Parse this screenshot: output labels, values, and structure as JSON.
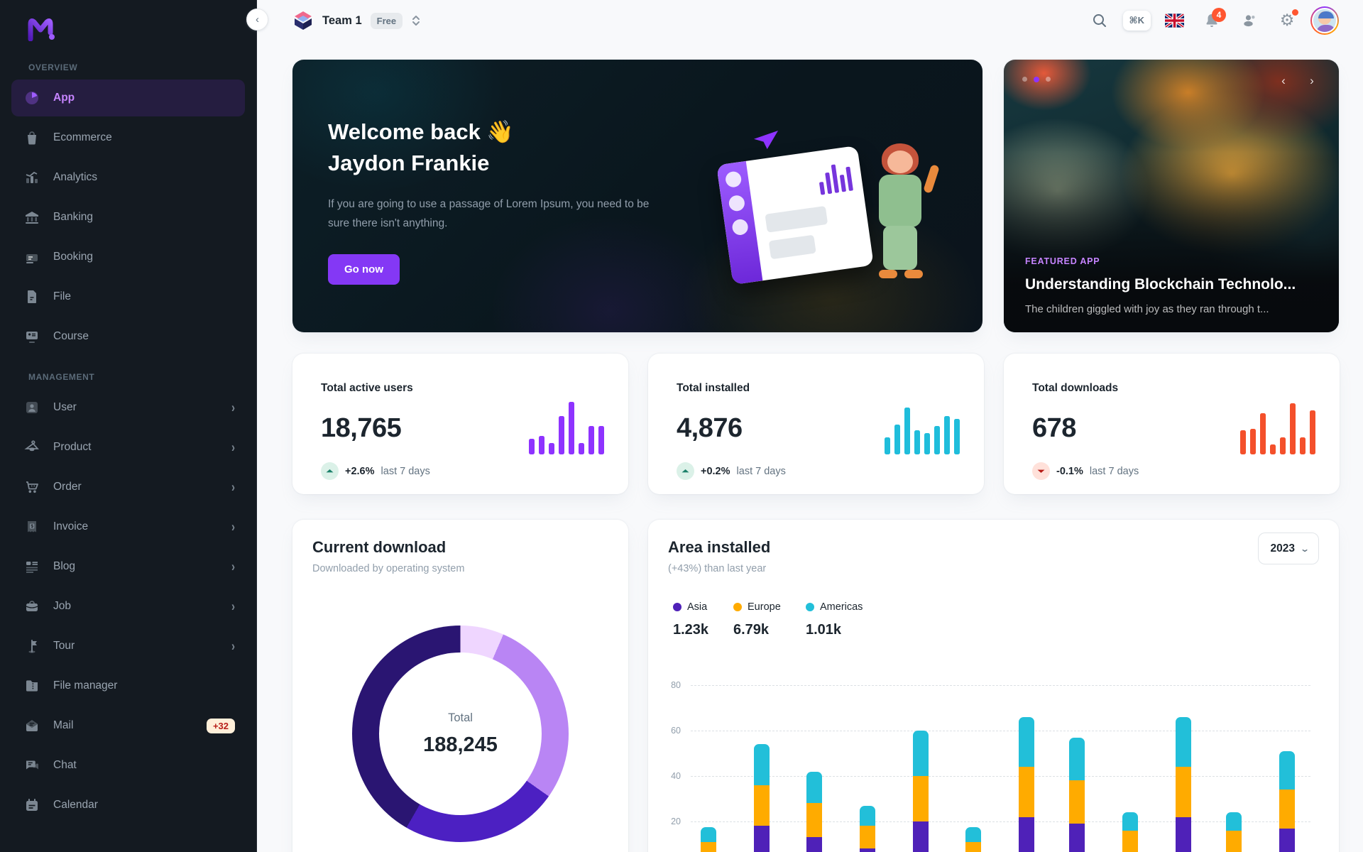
{
  "header": {
    "team_name": "Team 1",
    "plan_badge": "Free",
    "shortcut": "⌘K",
    "notification_count": "4",
    "collapse_glyph": "‹"
  },
  "sidebar": {
    "sections": [
      {
        "label": "OVERVIEW",
        "items": [
          {
            "label": "App",
            "icon": "app",
            "active": true
          },
          {
            "label": "Ecommerce",
            "icon": "ecommerce"
          },
          {
            "label": "Analytics",
            "icon": "analytics"
          },
          {
            "label": "Banking",
            "icon": "banking"
          },
          {
            "label": "Booking",
            "icon": "booking"
          },
          {
            "label": "File",
            "icon": "file"
          },
          {
            "label": "Course",
            "icon": "course"
          }
        ]
      },
      {
        "label": "MANAGEMENT",
        "items": [
          {
            "label": "User",
            "icon": "user",
            "chevron": true
          },
          {
            "label": "Product",
            "icon": "product",
            "chevron": true
          },
          {
            "label": "Order",
            "icon": "order",
            "chevron": true
          },
          {
            "label": "Invoice",
            "icon": "invoice",
            "chevron": true
          },
          {
            "label": "Blog",
            "icon": "blog",
            "chevron": true
          },
          {
            "label": "Job",
            "icon": "job",
            "chevron": true
          },
          {
            "label": "Tour",
            "icon": "tour",
            "chevron": true
          },
          {
            "label": "File manager",
            "icon": "folder"
          },
          {
            "label": "Mail",
            "icon": "mail",
            "badge": "+32"
          },
          {
            "label": "Chat",
            "icon": "chat"
          },
          {
            "label": "Calendar",
            "icon": "calendar"
          }
        ]
      }
    ]
  },
  "banner": {
    "greeting": "Welcome back 👋",
    "name": "Jaydon Frankie",
    "message": "If you are going to use a passage of Lorem Ipsum, you need to be sure there isn't anything.",
    "cta": "Go now"
  },
  "featured": {
    "tag": "FEATURED APP",
    "title": "Understanding Blockchain Technolo...",
    "subtitle": "The children giggled with joy as they ran through t...",
    "prev_glyph": "‹",
    "next_glyph": "›"
  },
  "stats": [
    {
      "title": "Total active users",
      "value": "18,765",
      "delta": "+2.6%",
      "period": "last 7 days",
      "trend": "up",
      "color": "#8E33FF"
    },
    {
      "title": "Total installed",
      "value": "4,876",
      "delta": "+0.2%",
      "period": "last 7 days",
      "trend": "up",
      "color": "#1FBDDB"
    },
    {
      "title": "Total downloads",
      "value": "678",
      "delta": "-0.1%",
      "period": "last 7 days",
      "trend": "down",
      "color": "#F4502B"
    }
  ],
  "donut": {
    "title": "Current download",
    "subtitle": "Downloaded by operating system",
    "center_label": "Total",
    "center_value": "188,245"
  },
  "area": {
    "title": "Area installed",
    "subtitle": "(+43%) than last year",
    "year": "2023",
    "legend": [
      {
        "label": "Asia",
        "value": "1.23k",
        "color": "#4F21B8"
      },
      {
        "label": "Europe",
        "value": "6.79k",
        "color": "#FFAB00"
      },
      {
        "label": "Americas",
        "value": "1.01k",
        "color": "#22BFD9"
      }
    ],
    "y_ticks": [
      "80",
      "60",
      "40",
      "20"
    ]
  },
  "chart_data": [
    {
      "type": "pie",
      "title": "Current download",
      "center_total": 188245,
      "segments": [
        {
          "name": "segment-1-lightest",
          "share_pct": 6.5,
          "color": "#EFD6FF"
        },
        {
          "name": "segment-2-light",
          "share_pct": 28.3,
          "color": "#B985F4"
        },
        {
          "name": "segment-3-violet",
          "share_pct": 23.5,
          "color": "#4C20C2"
        },
        {
          "name": "segment-4-darkest",
          "share_pct": 41.7,
          "color": "#2A1572"
        }
      ],
      "legend_position": "none",
      "note": "ring chart, white hole with Total 188,245"
    },
    {
      "type": "bar",
      "stacked": true,
      "title": "Area installed",
      "ylim": [
        0,
        80
      ],
      "y_ticks": [
        20,
        40,
        60,
        80
      ],
      "grid": "dashed-horizontal",
      "categories": [
        "1",
        "2",
        "3",
        "4",
        "5",
        "6",
        "7",
        "8",
        "9",
        "10",
        "11",
        "12"
      ],
      "x_axis_labels_visible": false,
      "series": [
        {
          "name": "Asia",
          "color": "#4F21B8",
          "values": [
            4,
            18,
            13,
            8,
            20,
            3,
            22,
            19,
            5,
            22,
            5,
            17
          ]
        },
        {
          "name": "Europe",
          "color": "#FFAB00",
          "values": [
            7,
            18,
            15,
            10,
            20,
            8,
            22,
            19,
            11,
            22,
            11,
            17
          ]
        },
        {
          "name": "Americas",
          "color": "#22BFD9",
          "values": [
            6.5,
            18,
            14,
            9,
            20,
            6.5,
            22,
            19,
            8,
            22,
            8,
            17
          ]
        }
      ]
    },
    {
      "type": "bar",
      "title": "Total active users sparkline",
      "color": "#8E33FF",
      "values": [
        22,
        26,
        16,
        54,
        74,
        16,
        40,
        40
      ]
    },
    {
      "type": "bar",
      "title": "Total installed sparkline",
      "color": "#1FBDDB",
      "values": [
        24,
        42,
        66,
        34,
        30,
        40,
        54,
        50
      ]
    },
    {
      "type": "bar",
      "title": "Total downloads sparkline",
      "color": "#F4502B",
      "values": [
        34,
        36,
        58,
        14,
        24,
        72,
        24,
        62
      ]
    }
  ]
}
